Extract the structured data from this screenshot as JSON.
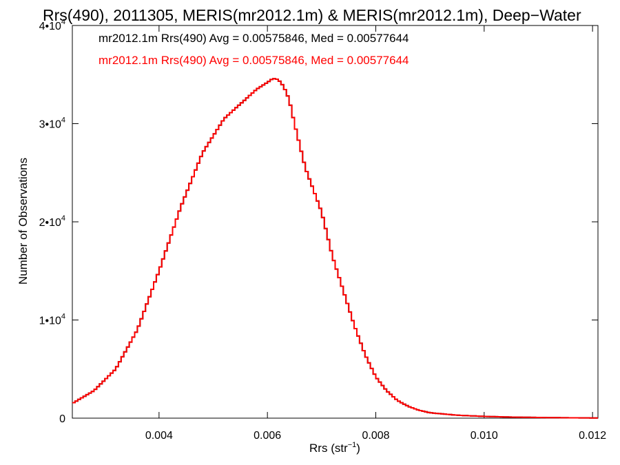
{
  "chart_data": {
    "type": "line",
    "title": "Rrs(490), 2011305, MERIS(mr2012.1m) & MERIS(mr2012.1m), Deep−Water",
    "xlabel": "Rrs (str",
    "xlabel_sup": "−1",
    "xlabel_end": ")",
    "ylabel": "Number of Observations",
    "xlim": [
      0.0024,
      0.0121
    ],
    "ylim": [
      0,
      40000
    ],
    "x_ticks": [
      0.004,
      0.006,
      0.008,
      0.01,
      0.012
    ],
    "x_tick_labels": [
      "0.004",
      "0.006",
      "0.008",
      "0.010",
      "0.012"
    ],
    "y_ticks": [
      0,
      10000,
      20000,
      30000,
      40000
    ],
    "y_tick_labels": [
      {
        "base": "0",
        "sup": ""
      },
      {
        "base": "1•10",
        "sup": "4"
      },
      {
        "base": "2•10",
        "sup": "4"
      },
      {
        "base": "3•10",
        "sup": "4"
      },
      {
        "base": "4•10",
        "sup": "4"
      }
    ],
    "legend_placement": "top-left",
    "series": [
      {
        "name": "mr2012.1m Rrs(490) Avg = 0.00575846, Med = 0.00577644",
        "color": "#000000"
      },
      {
        "name": "mr2012.1m Rrs(490) Avg = 0.00575846, Med = 0.00577644",
        "color": "#ff0000"
      }
    ],
    "x": [
      0.0024,
      0.0028,
      0.0032,
      0.0036,
      0.004,
      0.0044,
      0.0048,
      0.0052,
      0.0055,
      0.0058,
      0.006,
      0.0061,
      0.0062,
      0.0063,
      0.0064,
      0.0065,
      0.0067,
      0.007,
      0.0072,
      0.0074,
      0.0076,
      0.0078,
      0.008,
      0.0082,
      0.0084,
      0.0086,
      0.0088,
      0.009,
      0.0095,
      0.01,
      0.0105,
      0.011,
      0.0115,
      0.0121
    ],
    "y": [
      1500,
      2800,
      5000,
      9000,
      15000,
      21500,
      27000,
      30500,
      32000,
      33500,
      34200,
      34600,
      34500,
      33800,
      32500,
      30000,
      25500,
      21000,
      16500,
      13000,
      9500,
      6500,
      4200,
      2800,
      1800,
      1200,
      800,
      550,
      300,
      180,
      110,
      70,
      40,
      20
    ]
  }
}
